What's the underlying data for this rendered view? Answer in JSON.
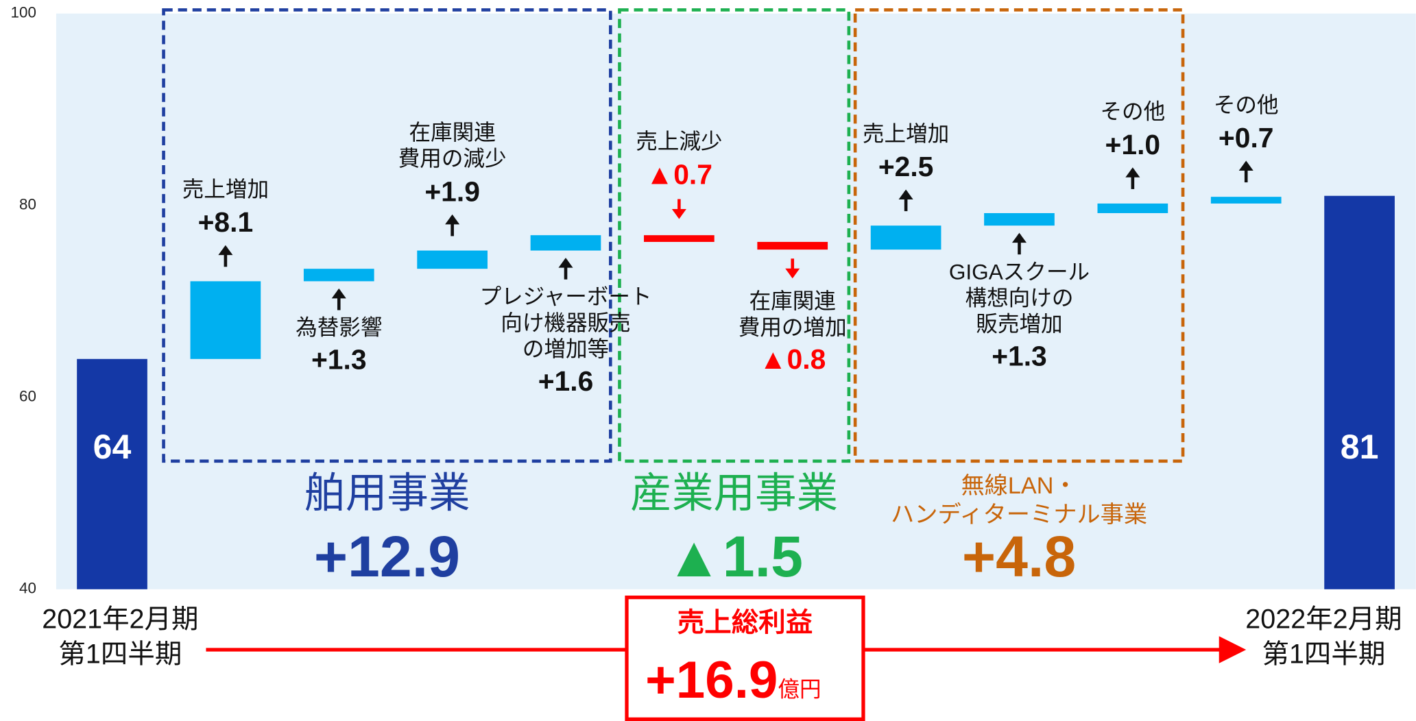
{
  "chart_data": {
    "type": "waterfall",
    "categories": [
      [
        "2021年2月期",
        "第1四半期"
      ],
      [
        "売上増加"
      ],
      [
        "為替影響"
      ],
      [
        "在庫関連",
        "費用の減少"
      ],
      [
        "プレジャーボート",
        "向け機器販売",
        "の増加等"
      ],
      [
        "売上減少"
      ],
      [
        "在庫関連",
        "費用の増加"
      ],
      [
        "売上増加"
      ],
      [
        "GIGAスクール",
        "構想向けの",
        "販売増加"
      ],
      [
        "その他"
      ],
      [
        "その他"
      ],
      [
        "2022年2月期",
        "第1四半期"
      ]
    ],
    "measure": [
      "absolute",
      "relative",
      "relative",
      "relative",
      "relative",
      "relative",
      "relative",
      "relative",
      "relative",
      "relative",
      "relative",
      "total"
    ],
    "values": [
      64,
      8.1,
      1.3,
      1.9,
      1.6,
      -0.7,
      -0.8,
      2.5,
      1.3,
      1.0,
      0.7,
      81
    ],
    "value_labels": [
      "64",
      "+8.1",
      "+1.3",
      "+1.9",
      "+1.6",
      "▲0.7",
      "▲0.8",
      "+2.5",
      "+1.3",
      "+1.0",
      "+0.7",
      "81"
    ],
    "colors": {
      "absolute": "#1438a6",
      "increase": "#00b0f0",
      "decrease": "#ff0000"
    },
    "ylim": [
      40,
      100
    ],
    "yticks": [
      40,
      60,
      80,
      100
    ],
    "groups": [
      {
        "name": [
          "舶用事業"
        ],
        "label": "+12.9",
        "color": "#1f3fa0"
      },
      {
        "name": [
          "産業用事業"
        ],
        "label": "▲1.5",
        "color": "#1db050"
      },
      {
        "name": [
          "無線LAN・",
          "ハンディターミナル事業"
        ],
        "label": "+4.8",
        "color": "#c8650a"
      }
    ],
    "total": {
      "name": "売上総利益",
      "label": "+16.9",
      "unit": "億円",
      "color": "#ff0000"
    }
  }
}
